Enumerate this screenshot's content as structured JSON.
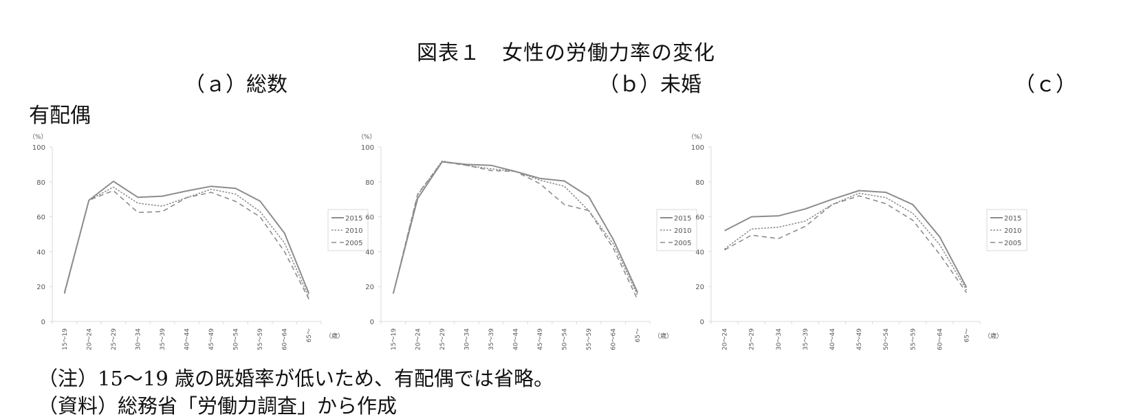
{
  "page": {
    "title": "図表１　女性の労働力率の変化",
    "subtitles": {
      "a": "（ａ）総数",
      "b": "（ｂ）未婚",
      "c_part1": "（ｃ）",
      "c_part2": "有配偶"
    },
    "notes": [
      "（注）15～19 歳の既婚率が低いため、有配偶では省略。",
      "（資料）総務省「労働力調査」から作成"
    ]
  },
  "chart_data": [
    {
      "type": "line",
      "title": "（ａ）総数",
      "ylabel": "（%）",
      "xlabel": "（歳）",
      "ylim": [
        0,
        100
      ],
      "yticks": [
        0,
        20,
        40,
        60,
        80,
        100
      ],
      "grid": false,
      "legend_position": "right",
      "categories": [
        "15～19",
        "20～24",
        "25～29",
        "30～34",
        "35～39",
        "40～44",
        "45～49",
        "50～54",
        "55～59",
        "60～64",
        "65～"
      ],
      "series": [
        {
          "name": "2015",
          "style": "solid",
          "values": [
            16.5,
            69.5,
            80.3,
            71.2,
            71.8,
            74.8,
            77.5,
            76.3,
            69.0,
            50.6,
            16.0
          ]
        },
        {
          "name": "2010",
          "style": "dotted",
          "values": [
            16.0,
            69.5,
            77.0,
            67.8,
            66.1,
            71.0,
            75.8,
            73.0,
            63.0,
            45.0,
            14.0
          ]
        },
        {
          "name": "2005",
          "style": "dashed",
          "values": [
            16.0,
            69.5,
            75.0,
            62.5,
            63.0,
            71.0,
            74.0,
            68.8,
            60.0,
            40.0,
            12.7
          ]
        }
      ]
    },
    {
      "type": "line",
      "title": "（ｂ）未婚",
      "ylabel": "（%）",
      "xlabel": "（歳）",
      "ylim": [
        0,
        100
      ],
      "yticks": [
        0,
        20,
        40,
        60,
        80,
        100
      ],
      "grid": false,
      "legend_position": "right",
      "categories": [
        "15～19",
        "20～24",
        "25～29",
        "30～34",
        "35～39",
        "40～44",
        "45～49",
        "50～54",
        "55～59",
        "60～64",
        "65～"
      ],
      "series": [
        {
          "name": "2015",
          "style": "solid",
          "values": [
            16.0,
            70.5,
            91.5,
            90.0,
            89.5,
            86.0,
            82.0,
            80.5,
            71.5,
            47.0,
            16.5
          ]
        },
        {
          "name": "2010",
          "style": "dotted",
          "values": [
            16.0,
            72.5,
            92.0,
            89.5,
            87.5,
            86.0,
            81.0,
            77.5,
            63.5,
            44.5,
            15.0
          ]
        },
        {
          "name": "2005",
          "style": "dashed",
          "values": [
            16.0,
            73.0,
            91.5,
            89.5,
            86.5,
            86.0,
            79.0,
            67.0,
            63.5,
            42.0,
            12.5
          ]
        }
      ]
    },
    {
      "type": "line",
      "title": "（ｃ）有配偶",
      "ylabel": "（%）",
      "xlabel": "（歳）",
      "ylim": [
        0,
        100
      ],
      "yticks": [
        0,
        20,
        40,
        60,
        80,
        100
      ],
      "grid": false,
      "legend_position": "right",
      "categories": [
        "20～24",
        "25～29",
        "30～34",
        "35～39",
        "40～44",
        "45～49",
        "50～54",
        "55～59",
        "60～64",
        "65～"
      ],
      "series": [
        {
          "name": "2015",
          "style": "solid",
          "values": [
            52.0,
            60.0,
            60.5,
            64.5,
            70.0,
            75.0,
            74.0,
            67.0,
            48.5,
            19.5
          ]
        },
        {
          "name": "2010",
          "style": "dotted",
          "values": [
            41.5,
            53.0,
            54.0,
            57.5,
            67.0,
            73.5,
            71.0,
            62.0,
            44.0,
            18.0
          ]
        },
        {
          "name": "2005",
          "style": "dashed",
          "values": [
            41.0,
            49.5,
            47.5,
            54.5,
            67.0,
            72.0,
            67.5,
            58.0,
            38.5,
            16.5
          ]
        }
      ]
    }
  ]
}
